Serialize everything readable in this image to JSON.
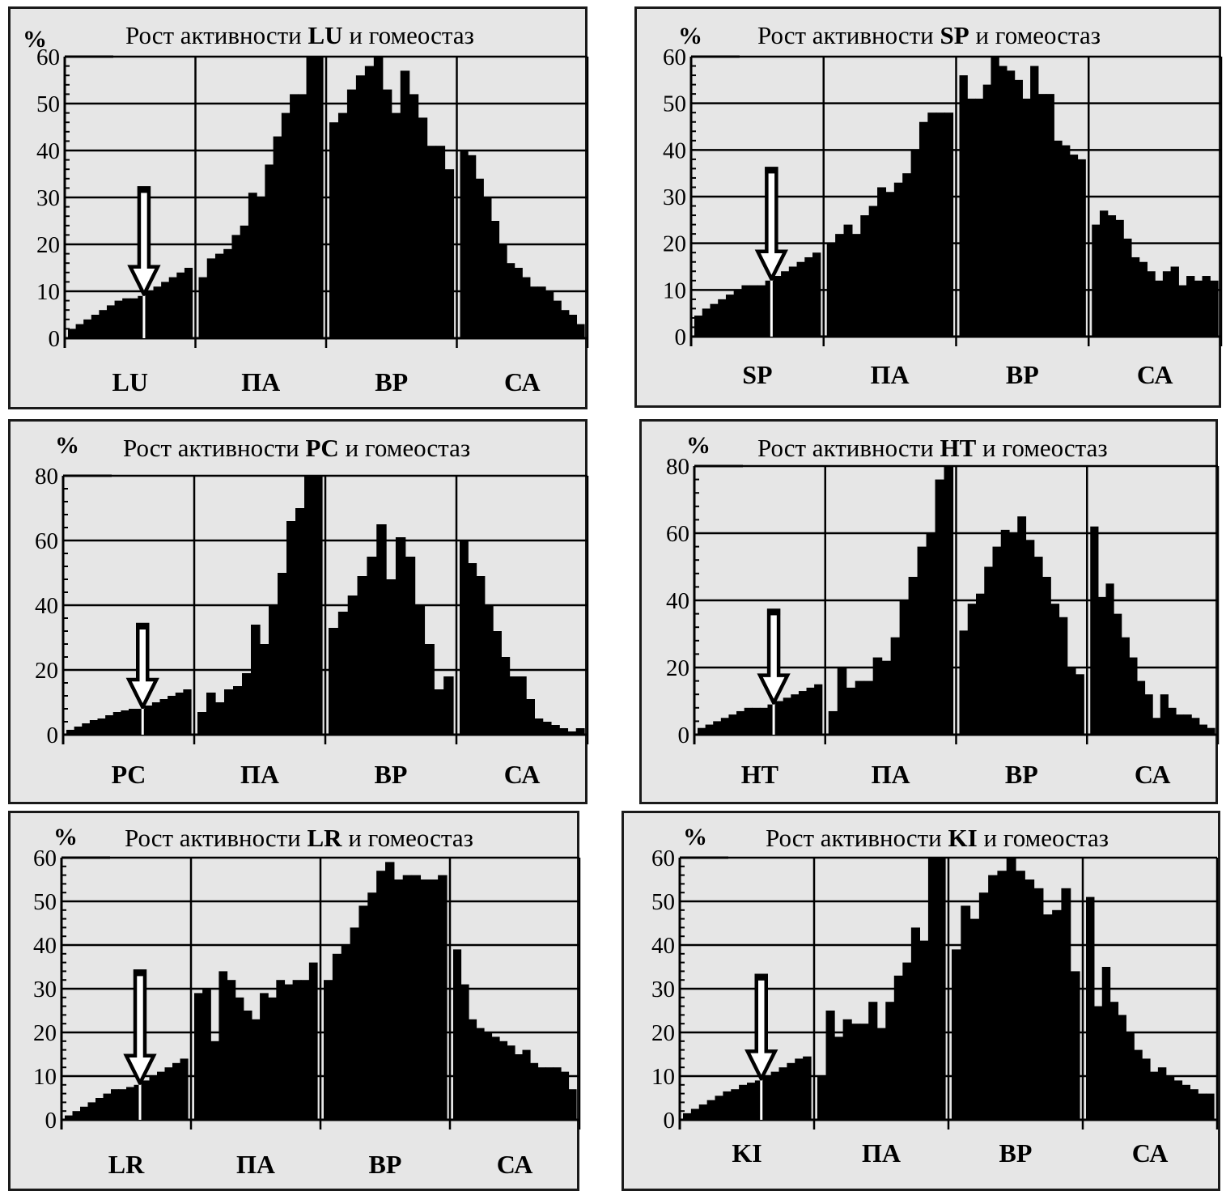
{
  "colors": {
    "background": "#e6e6e6",
    "bars": "#000000",
    "frame": "#000000",
    "border": "#1a1a1a"
  },
  "icons": {
    "arrow": "down-arrow-icon"
  },
  "chart_data": [
    {
      "type": "bar",
      "title_prefix": "Рост активности ",
      "title_code": "LU",
      "title_suffix": " и гомеостаз",
      "ylabel": "%",
      "ylim": [
        0,
        60
      ],
      "yticks": [
        0,
        10,
        20,
        30,
        40,
        50,
        60
      ],
      "grid": true,
      "segments": [
        "LU",
        "ПА",
        "ВР",
        "СА"
      ],
      "arrow": {
        "segment": 0,
        "bar_index": 10,
        "top_value": 32
      },
      "values": [
        [
          2,
          3,
          4,
          5,
          6,
          7,
          8,
          8.5,
          8.5,
          9,
          10,
          11,
          12,
          13,
          14,
          15
        ],
        [
          13,
          17,
          18,
          19,
          22,
          24,
          31,
          30,
          37,
          43,
          48,
          52,
          52,
          60,
          60
        ],
        [
          46,
          48,
          53,
          56,
          58,
          60,
          53,
          48,
          57,
          52,
          47,
          41,
          41,
          36
        ],
        [
          40,
          39,
          34,
          30,
          25,
          20,
          16,
          15,
          13,
          11,
          11,
          10,
          8,
          6,
          5,
          3
        ]
      ]
    },
    {
      "type": "bar",
      "title_prefix": "Рост активности ",
      "title_code": "SP",
      "title_suffix": " и гомеостаз",
      "ylabel": "%",
      "ylim": [
        0,
        60
      ],
      "yticks": [
        0,
        10,
        20,
        30,
        40,
        50,
        60
      ],
      "grid": true,
      "segments": [
        "SP",
        "ПА",
        "ВР",
        "СА"
      ],
      "arrow": {
        "segment": 0,
        "bar_index": 10,
        "top_value": 36
      },
      "values": [
        [
          4.5,
          6,
          7,
          8,
          9,
          10,
          11,
          11,
          11,
          12,
          13,
          14,
          15,
          16,
          17,
          18
        ],
        [
          20,
          22,
          24,
          22,
          26,
          28,
          32,
          31,
          33,
          35,
          40,
          46,
          48,
          48,
          48
        ],
        [
          56,
          51,
          51,
          54,
          60,
          58,
          57,
          55,
          51,
          58,
          52,
          52,
          42,
          41,
          39,
          38
        ],
        [
          24,
          27,
          26,
          25,
          21,
          17,
          16,
          14,
          12,
          14,
          15,
          11,
          13,
          12,
          13,
          12
        ]
      ]
    },
    {
      "type": "bar",
      "title_prefix": "Рост активности ",
      "title_code": "PC",
      "title_suffix": " и гомеостаз",
      "ylabel": "%",
      "ylim": [
        0,
        80
      ],
      "yticks": [
        0,
        20,
        40,
        60,
        80
      ],
      "grid": true,
      "segments": [
        "PC",
        "ПА",
        "ВР",
        "СА"
      ],
      "arrow": {
        "segment": 0,
        "bar_index": 10,
        "top_value": 34
      },
      "values": [
        [
          1.5,
          2.5,
          3.5,
          4.5,
          5,
          6,
          7,
          7.5,
          8,
          8,
          9,
          10,
          11,
          12,
          13,
          14
        ],
        [
          7,
          13,
          10,
          14,
          15,
          19,
          34,
          28,
          40,
          50,
          66,
          70,
          80,
          80
        ],
        [
          33,
          38,
          43,
          49,
          55,
          65,
          48,
          61,
          55,
          40,
          28,
          14,
          18
        ],
        [
          60,
          53,
          49,
          40,
          32,
          24,
          18,
          18,
          11,
          5,
          4,
          3,
          2,
          1,
          2
        ]
      ]
    },
    {
      "type": "bar",
      "title_prefix": "Рост активности ",
      "title_code": "HT",
      "title_suffix": " и гомеостаз",
      "ylabel": "%",
      "ylim": [
        0,
        80
      ],
      "yticks": [
        0,
        20,
        40,
        60,
        80
      ],
      "grid": true,
      "segments": [
        "HT",
        "ПА",
        "ВР",
        "СА"
      ],
      "arrow": {
        "segment": 0,
        "bar_index": 10,
        "top_value": 37
      },
      "values": [
        [
          2,
          3,
          4,
          5,
          6,
          7,
          8,
          8,
          8,
          9,
          10,
          11,
          12,
          13,
          14,
          15
        ],
        [
          7,
          20,
          14,
          16,
          16,
          23,
          22,
          29,
          40,
          47,
          56,
          60,
          76,
          80
        ],
        [
          31,
          39,
          42,
          50,
          56,
          61,
          60,
          65,
          58,
          53,
          47,
          39,
          35,
          20,
          18
        ],
        [
          62,
          41,
          45,
          36,
          29,
          23,
          16,
          12,
          5,
          12,
          8,
          6,
          6,
          5,
          3,
          2
        ]
      ]
    },
    {
      "type": "bar",
      "title_prefix": "Рост активности ",
      "title_code": "LR",
      "title_suffix": " и гомеостаз",
      "ylabel": "%",
      "ylim": [
        0,
        60
      ],
      "yticks": [
        0,
        10,
        20,
        30,
        40,
        50,
        60
      ],
      "grid": true,
      "segments": [
        "LR",
        "ПА",
        "ВР",
        "СА"
      ],
      "arrow": {
        "segment": 0,
        "bar_index": 10,
        "top_value": 34
      },
      "values": [
        [
          1,
          2,
          3,
          4,
          5,
          6,
          7,
          7,
          7.5,
          8,
          9,
          10,
          11,
          12,
          13,
          14
        ],
        [
          29,
          30,
          18,
          34,
          32,
          28,
          25,
          23,
          29,
          28,
          32,
          31,
          32,
          32,
          36
        ],
        [
          32,
          38,
          40,
          44,
          49,
          52,
          57,
          59,
          55,
          56,
          56,
          55,
          55,
          56
        ],
        [
          39,
          31,
          23,
          21,
          20,
          19,
          18,
          17,
          15,
          16,
          13,
          12,
          12,
          12,
          11,
          7
        ]
      ]
    },
    {
      "type": "bar",
      "title_prefix": "Рост активности ",
      "title_code": "KI",
      "title_suffix": " и гомеостаз",
      "ylabel": "%",
      "ylim": [
        0,
        60
      ],
      "yticks": [
        0,
        10,
        20,
        30,
        40,
        50,
        60
      ],
      "grid": true,
      "segments": [
        "KI",
        "ПА",
        "ВР",
        "СА"
      ],
      "arrow": {
        "segment": 0,
        "bar_index": 10,
        "top_value": 33
      },
      "values": [
        [
          1.5,
          2.5,
          3.5,
          4.5,
          5.5,
          6.5,
          7,
          8,
          8.5,
          9,
          10,
          11,
          12,
          13,
          14,
          14.5
        ],
        [
          10,
          25,
          19,
          23,
          22,
          22,
          27,
          21,
          27,
          33,
          36,
          44,
          41,
          60,
          60
        ],
        [
          39,
          49,
          46,
          52,
          56,
          57,
          60,
          57,
          55,
          53,
          47,
          48,
          53,
          34
        ],
        [
          51,
          26,
          35,
          27,
          24,
          20,
          16,
          14,
          11,
          12,
          10,
          9,
          8,
          7,
          6,
          6
        ]
      ]
    }
  ]
}
